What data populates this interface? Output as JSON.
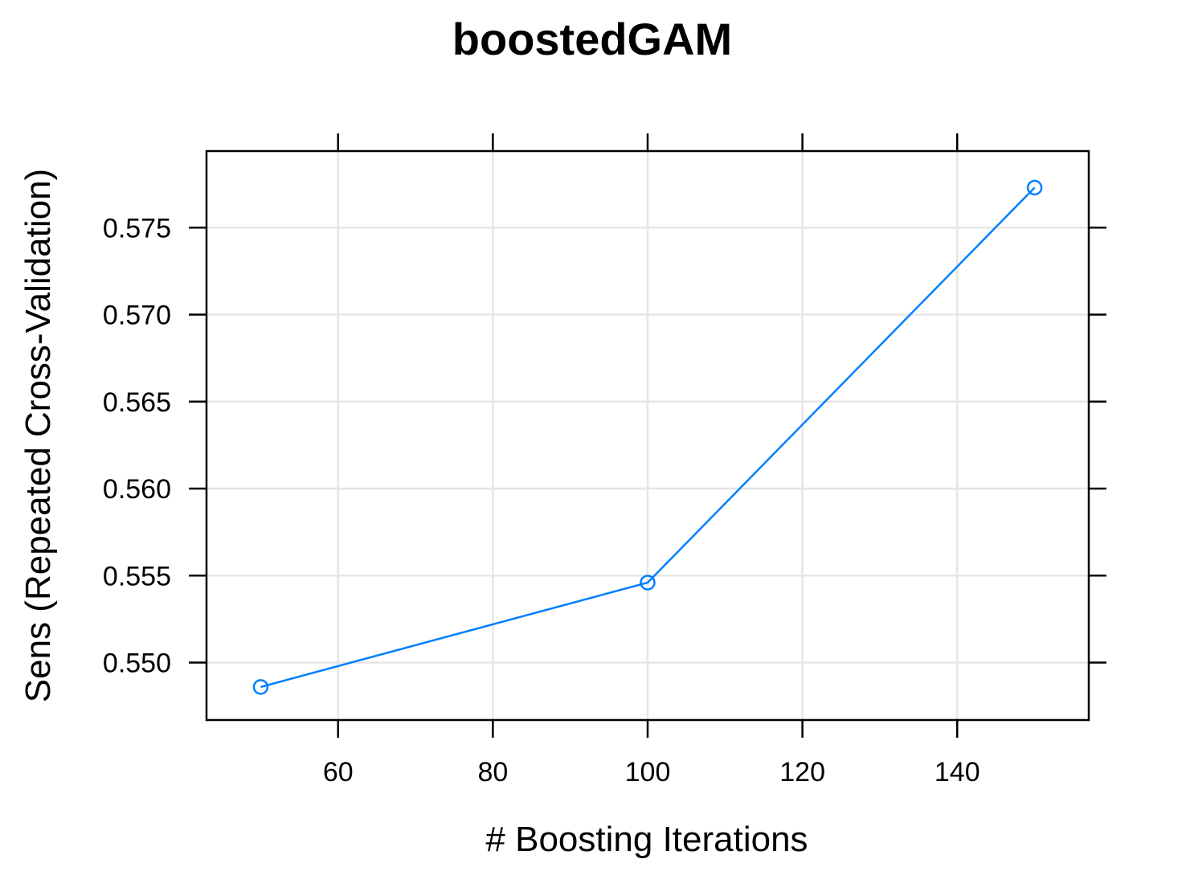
{
  "chart_data": {
    "type": "line",
    "title": "boostedGAM",
    "xlabel": "# Boosting Iterations",
    "ylabel": "Sens (Repeated Cross-Validation)",
    "x": [
      50,
      100,
      150
    ],
    "series": [
      {
        "values": [
          0.5486,
          0.5546,
          0.5773
        ],
        "color": "#0080ff",
        "marker": "open-circle"
      }
    ],
    "xlim": [
      43,
      157
    ],
    "ylim": [
      0.5467,
      0.5794
    ],
    "xticks": [
      60,
      80,
      100,
      120,
      140
    ],
    "xtick_labels": [
      "60",
      "80",
      "100",
      "120",
      "140"
    ],
    "yticks": [
      0.55,
      0.555,
      0.56,
      0.565,
      0.57,
      0.575
    ],
    "ytick_labels": [
      "0.550",
      "0.555",
      "0.560",
      "0.565",
      "0.570",
      "0.575"
    ],
    "grid": true,
    "grid_color": "#e6e6e6",
    "legend": "none"
  }
}
